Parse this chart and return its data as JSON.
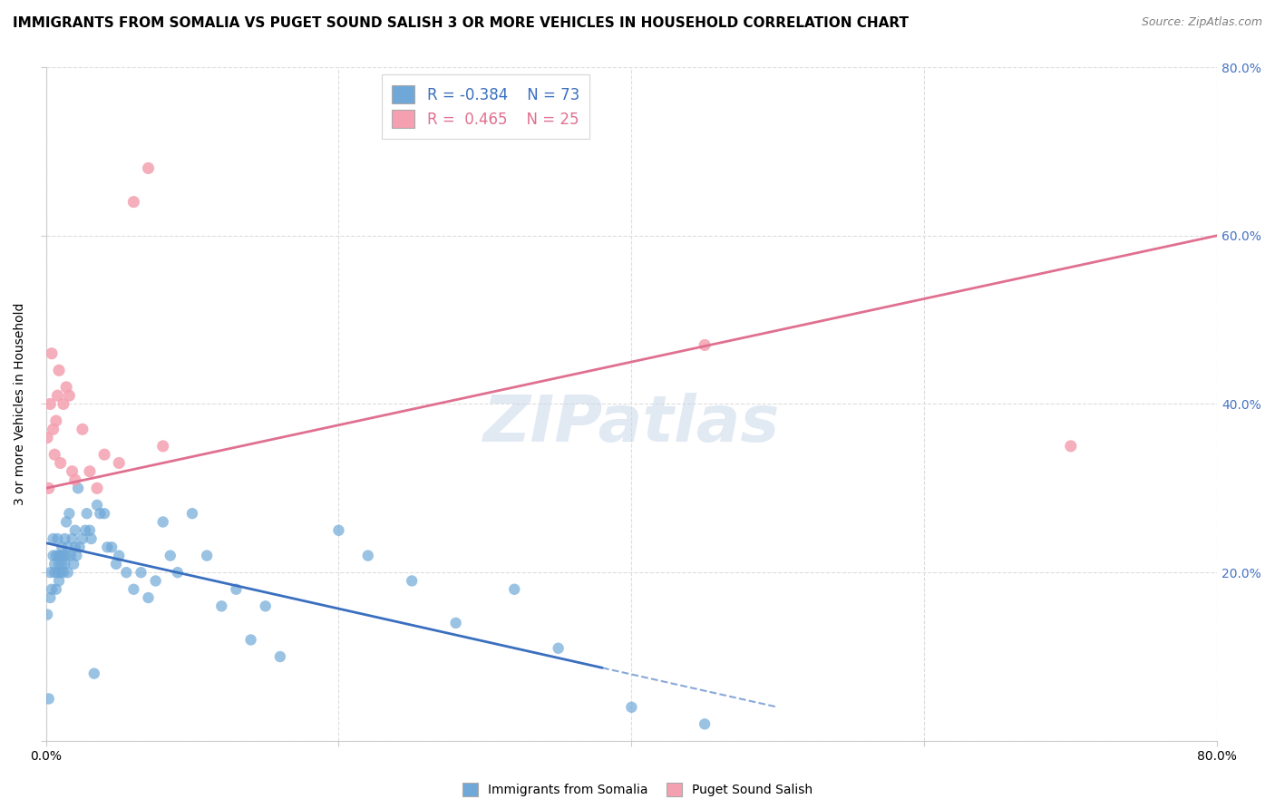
{
  "title": "IMMIGRANTS FROM SOMALIA VS PUGET SOUND SALISH 3 OR MORE VEHICLES IN HOUSEHOLD CORRELATION CHART",
  "source": "Source: ZipAtlas.com",
  "ylabel": "3 or more Vehicles in Household",
  "xlim": [
    0.0,
    0.8
  ],
  "ylim": [
    0.0,
    0.8
  ],
  "xtick_vals": [
    0.0,
    0.2,
    0.4,
    0.6,
    0.8
  ],
  "xtick_labels": [
    "0.0%",
    "",
    "",
    "",
    "80.0%"
  ],
  "ytick_vals": [
    0.0,
    0.2,
    0.4,
    0.6,
    0.8
  ],
  "ytick_labels": [
    "",
    "20.0%",
    "40.0%",
    "60.0%",
    "80.0%"
  ],
  "blue_R": -0.384,
  "blue_N": 73,
  "pink_R": 0.465,
  "pink_N": 25,
  "blue_color": "#6fa8d8",
  "pink_color": "#f4a0b0",
  "blue_line_color": "#3a6fbf",
  "pink_line_color": "#e07090",
  "watermark": "ZIPatlas",
  "blue_scatter_x": [
    0.001,
    0.002,
    0.003,
    0.003,
    0.004,
    0.005,
    0.005,
    0.006,
    0.006,
    0.007,
    0.007,
    0.008,
    0.008,
    0.009,
    0.009,
    0.009,
    0.01,
    0.01,
    0.011,
    0.011,
    0.012,
    0.012,
    0.013,
    0.013,
    0.014,
    0.014,
    0.015,
    0.015,
    0.016,
    0.017,
    0.018,
    0.019,
    0.02,
    0.02,
    0.021,
    0.022,
    0.023,
    0.025,
    0.027,
    0.028,
    0.03,
    0.031,
    0.033,
    0.035,
    0.037,
    0.04,
    0.042,
    0.045,
    0.048,
    0.05,
    0.055,
    0.06,
    0.065,
    0.07,
    0.075,
    0.08,
    0.085,
    0.09,
    0.1,
    0.11,
    0.12,
    0.13,
    0.14,
    0.15,
    0.16,
    0.2,
    0.22,
    0.25,
    0.28,
    0.32,
    0.35,
    0.4,
    0.45
  ],
  "blue_scatter_y": [
    0.15,
    0.05,
    0.17,
    0.2,
    0.18,
    0.22,
    0.24,
    0.2,
    0.21,
    0.18,
    0.22,
    0.2,
    0.24,
    0.19,
    0.21,
    0.22,
    0.2,
    0.22,
    0.21,
    0.23,
    0.2,
    0.22,
    0.21,
    0.24,
    0.22,
    0.26,
    0.2,
    0.23,
    0.27,
    0.22,
    0.24,
    0.21,
    0.23,
    0.25,
    0.22,
    0.3,
    0.23,
    0.24,
    0.25,
    0.27,
    0.25,
    0.24,
    0.08,
    0.28,
    0.27,
    0.27,
    0.23,
    0.23,
    0.21,
    0.22,
    0.2,
    0.18,
    0.2,
    0.17,
    0.19,
    0.26,
    0.22,
    0.2,
    0.27,
    0.22,
    0.16,
    0.18,
    0.12,
    0.16,
    0.1,
    0.25,
    0.22,
    0.19,
    0.14,
    0.18,
    0.11,
    0.04,
    0.02
  ],
  "pink_scatter_x": [
    0.001,
    0.002,
    0.003,
    0.004,
    0.005,
    0.006,
    0.007,
    0.008,
    0.009,
    0.01,
    0.012,
    0.014,
    0.016,
    0.018,
    0.02,
    0.025,
    0.03,
    0.035,
    0.04,
    0.05,
    0.06,
    0.07,
    0.08,
    0.45,
    0.7
  ],
  "pink_scatter_y": [
    0.36,
    0.3,
    0.4,
    0.46,
    0.37,
    0.34,
    0.38,
    0.41,
    0.44,
    0.33,
    0.4,
    0.42,
    0.41,
    0.32,
    0.31,
    0.37,
    0.32,
    0.3,
    0.34,
    0.33,
    0.64,
    0.68,
    0.35,
    0.47,
    0.35
  ],
  "blue_trend_x": [
    0.0,
    0.5
  ],
  "blue_trend_y": [
    0.235,
    0.04
  ],
  "pink_trend_x": [
    0.0,
    0.8
  ],
  "pink_trend_y": [
    0.3,
    0.6
  ],
  "bg_color": "#ffffff",
  "grid_color": "#dddddd",
  "title_fontsize": 11,
  "axis_fontsize": 10,
  "tick_fontsize": 10,
  "tick_color_right": "#4472c4"
}
